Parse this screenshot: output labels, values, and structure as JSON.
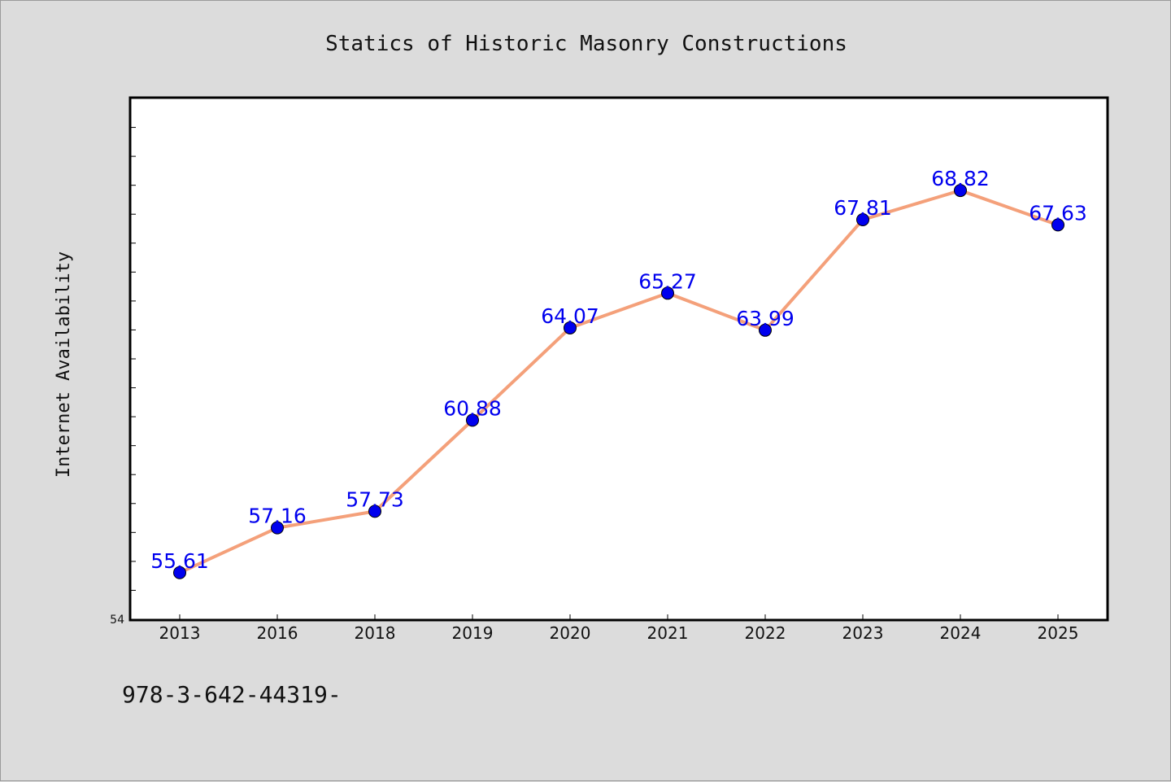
{
  "chart_data": {
    "type": "line",
    "title": "Statics of Historic Masonry Constructions",
    "xlabel": "",
    "ylabel": "Internet Availability",
    "categories": [
      "2013",
      "2016",
      "2018",
      "2019",
      "2020",
      "2021",
      "2022",
      "2023",
      "2024",
      "2025"
    ],
    "values": [
      55.61,
      57.16,
      57.73,
      60.88,
      64.07,
      65.27,
      63.99,
      67.81,
      68.82,
      67.63
    ],
    "data_labels": [
      "55.61",
      "57.16",
      "57.73",
      "60.88",
      "64.07",
      "65.27",
      "63.99",
      "67.81",
      "68.82",
      "67.63"
    ],
    "yticks": [
      "54"
    ],
    "ylim": [
      54,
      72
    ],
    "grid": false,
    "line_color": "#f4a07a",
    "marker_color": "#0000ee",
    "label_color": "#0000ee"
  },
  "footer": {
    "text": "978-3-642-44319-"
  }
}
